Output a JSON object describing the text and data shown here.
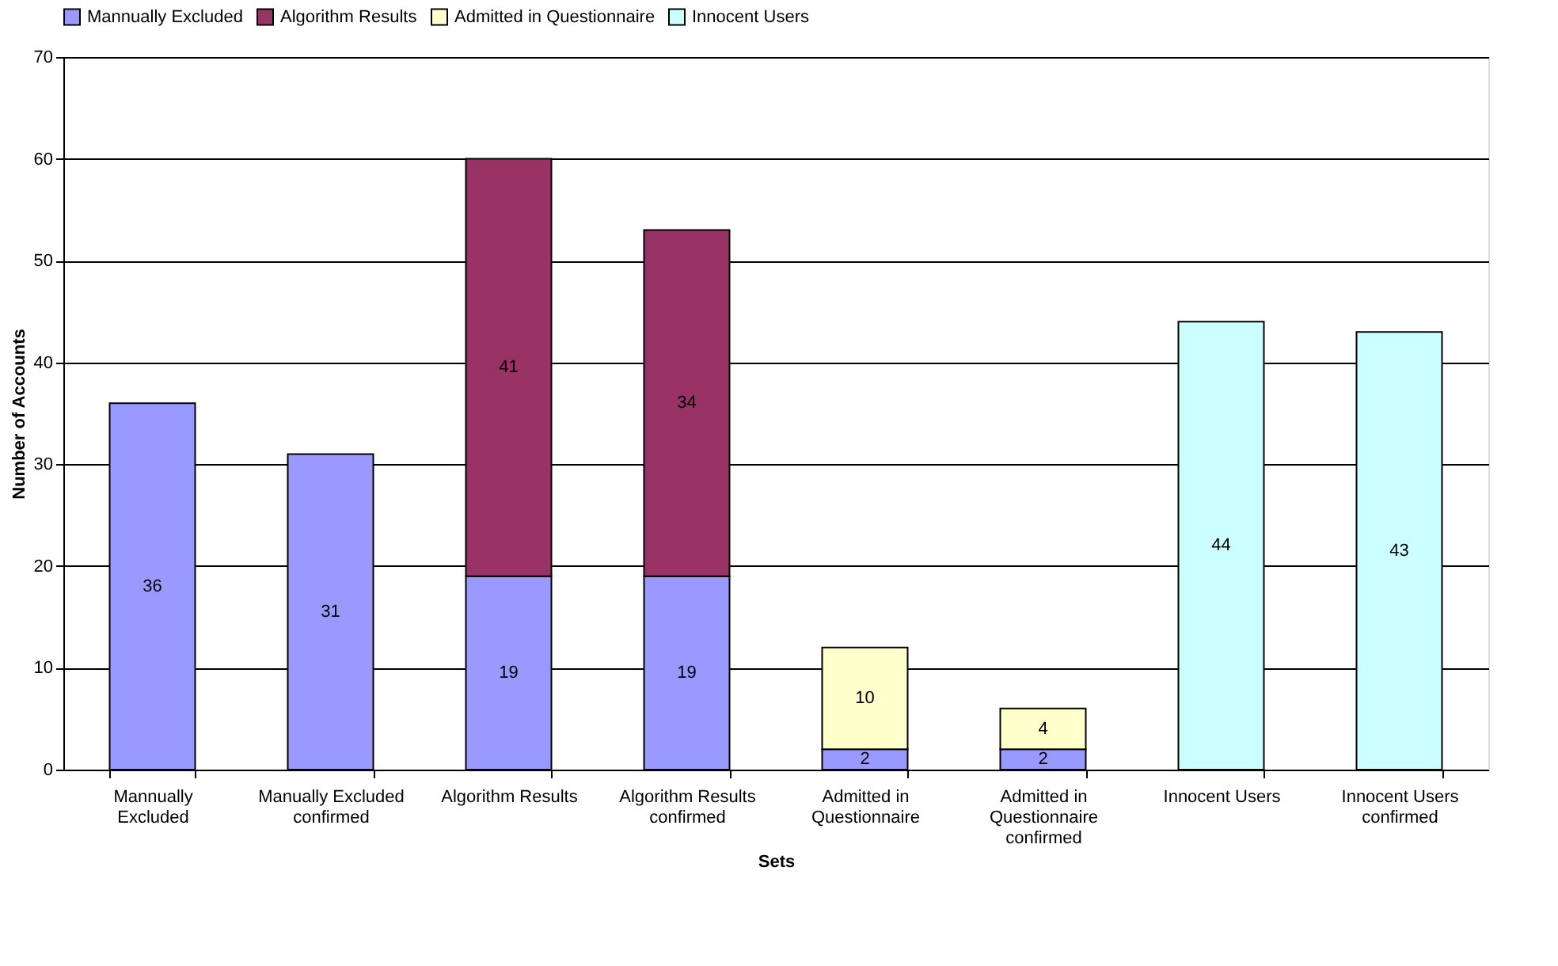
{
  "chart_data": {
    "type": "bar",
    "stacked": true,
    "xlabel": "Sets",
    "ylabel": "Number of Accounts",
    "categories": [
      "Mannually Excluded",
      "Manually Excluded confirmed",
      "Algorithm Results",
      "Algorithm Results confirmed",
      "Admitted in Questionnaire",
      "Admitted in Questionnaire confirmed",
      "Innocent Users",
      "Innocent Users confirmed"
    ],
    "series": [
      {
        "name": "Mannually Excluded",
        "color": "#9999ff",
        "values": [
          36,
          31,
          19,
          19,
          2,
          2,
          null,
          null
        ]
      },
      {
        "name": "Algorithm Results",
        "color": "#993366",
        "values": [
          null,
          null,
          41,
          34,
          null,
          null,
          null,
          null
        ]
      },
      {
        "name": "Admitted in Questionnaire",
        "color": "#ffffcc",
        "values": [
          null,
          null,
          null,
          null,
          10,
          4,
          null,
          null
        ]
      },
      {
        "name": "Innocent Users",
        "color": "#ccffff",
        "values": [
          null,
          null,
          null,
          null,
          null,
          null,
          44,
          43
        ]
      }
    ],
    "ylim": [
      0,
      70
    ],
    "yticks": [
      0,
      10,
      20,
      30,
      40,
      50,
      60,
      70
    ],
    "grid": "y",
    "legend": "top",
    "data_labels": true
  }
}
